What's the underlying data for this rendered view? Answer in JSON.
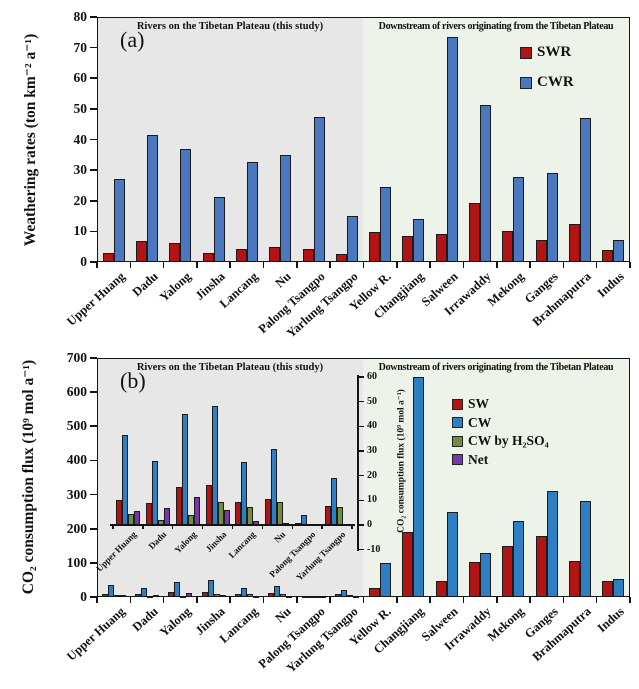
{
  "figure": {
    "panel_a_label": "(a)",
    "panel_b_label": "(b)",
    "region_left_title": "Rivers on the Tibetan Plateau (this study)",
    "region_right_title": "Downstream of rivers originating from the Tibetan Plateau",
    "background_left_color": "#e7e7e7",
    "background_right_color": "#edf3e8"
  },
  "chart_data": [
    {
      "id": "panel-a",
      "type": "bar",
      "title": "",
      "xlabel": "",
      "ylabel": "Weathering rates (ton km⁻² a⁻¹)",
      "ylim": [
        0,
        80
      ],
      "yticks": [
        0,
        10,
        20,
        30,
        40,
        50,
        60,
        70,
        80
      ],
      "grid": false,
      "legend_position": "top-right",
      "categories": [
        "Upper Huang",
        "Dadu",
        "Yalong",
        "Jinsha",
        "Lancang",
        "Nu",
        "Palong Tsangpo",
        "Yarlung Tsangpo",
        "Yellow R.",
        "Changjiang",
        "Salween",
        "Irrawaddy",
        "Mekong",
        "Ganges",
        "Brahmaputra",
        "Indus"
      ],
      "series": [
        {
          "name": "SWR",
          "color": "#b01414",
          "values": [
            2.8,
            6.8,
            6.2,
            3.0,
            4.4,
            5.0,
            4.4,
            2.6,
            9.9,
            8.5,
            9.3,
            19.3,
            10.1,
            7.2,
            12.4,
            3.9
          ]
        },
        {
          "name": "CWR",
          "color": "#4a77bd",
          "values": [
            27.2,
            41.5,
            37.0,
            21.3,
            32.8,
            34.9,
            47.2,
            15.1,
            24.5,
            13.9,
            73.6,
            51.2,
            27.6,
            28.9,
            47.0,
            7.3
          ]
        }
      ]
    },
    {
      "id": "panel-b-main",
      "type": "bar",
      "title": "",
      "xlabel": "",
      "ylabel": "CO₂ consumption flux (10⁹ mol a⁻¹)",
      "ylim": [
        0,
        700
      ],
      "yticks": [
        0,
        100,
        200,
        300,
        400,
        500,
        600,
        700
      ],
      "grid": false,
      "legend_position": "top-right",
      "categories": [
        "Upper Huang",
        "Dadu",
        "Yalong",
        "Jinsha",
        "Lancang",
        "Nu",
        "Palong Tsangpo",
        "Yarlung Tsangpo",
        "Yellow R.",
        "Changjiang",
        "Salween",
        "Irrawaddy",
        "Mekong",
        "Ganges",
        "Brahmaputra",
        "Indus"
      ],
      "series": [
        {
          "name": "SW",
          "color": "#b01414",
          "values": [
            10.1,
            8.9,
            15.5,
            16.1,
            9.2,
            10.6,
            0.9,
            7.7,
            25,
            190,
            48,
            103,
            148,
            178,
            105,
            48
          ]
        },
        {
          "name": "CW",
          "color": "#2d7ec2",
          "values": [
            36.5,
            26.1,
            45.0,
            48.4,
            25.6,
            31.0,
            3.9,
            19.1,
            100,
            645,
            250,
            130,
            223,
            310,
            280,
            52
          ]
        },
        {
          "name": "CW by H₂SO₄",
          "color": "#6f8f3f",
          "values": [
            4.5,
            2.1,
            4.2,
            9.3,
            7.4,
            9.3,
            0.5,
            7.3,
            null,
            null,
            null,
            null,
            null,
            null,
            null,
            null
          ]
        },
        {
          "name": "Net",
          "color": "#7638a6",
          "values": [
            5.8,
            6.9,
            11.2,
            6.1,
            1.6,
            0.8,
            0.2,
            0.3,
            null,
            null,
            null,
            null,
            null,
            null,
            null,
            null
          ]
        }
      ]
    },
    {
      "id": "panel-b-inset",
      "type": "bar",
      "title": "",
      "xlabel": "",
      "ylabel": "CO₂ consumption flux (10⁹ mol a⁻¹)",
      "ylim": [
        -10,
        60
      ],
      "yticks": [
        -10,
        0,
        10,
        20,
        30,
        40,
        50,
        60
      ],
      "grid": false,
      "legend_position": "none",
      "categories": [
        "Upper Huang",
        "Dadu",
        "Yalong",
        "Jinsha",
        "Lancang",
        "Nu",
        "Palong Tsangpo",
        "Yarlung Tsangpo"
      ],
      "series": [
        {
          "name": "SW",
          "color": "#b01414",
          "values": [
            10.1,
            8.9,
            15.5,
            16.1,
            9.2,
            10.6,
            0.9,
            7.7
          ]
        },
        {
          "name": "CW",
          "color": "#2d7ec2",
          "values": [
            36.5,
            26.1,
            45.0,
            48.4,
            25.6,
            31.0,
            3.9,
            19.1
          ]
        },
        {
          "name": "CW by H₂SO₄",
          "color": "#6f8f3f",
          "values": [
            4.5,
            2.1,
            4.2,
            9.3,
            7.4,
            9.3,
            0.5,
            7.3
          ]
        },
        {
          "name": "Net",
          "color": "#7638a6",
          "values": [
            5.8,
            6.9,
            11.2,
            6.1,
            1.6,
            0.8,
            0.2,
            0.3
          ]
        }
      ]
    }
  ]
}
